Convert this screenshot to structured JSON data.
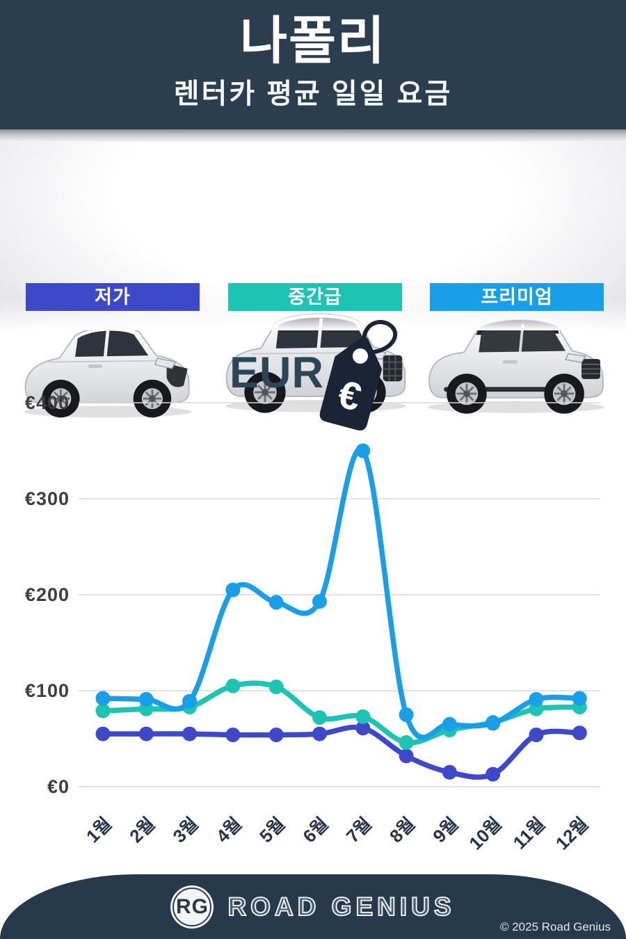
{
  "header": {
    "title": "나폴리",
    "subtitle": "렌터카 평균 일일 요금"
  },
  "categories": [
    {
      "label": "저가",
      "color": "#3e49c9"
    },
    {
      "label": "중간급",
      "color": "#1cc4b4"
    },
    {
      "label": "프리미엄",
      "color": "#189fe8"
    }
  ],
  "currency": {
    "label": "EUR",
    "symbol": "€"
  },
  "chart_data": {
    "type": "line",
    "title": "나폴리 렌터카 평균 일일 요금",
    "currency": "EUR",
    "x": [
      "1월",
      "2월",
      "3월",
      "4월",
      "5월",
      "6월",
      "7월",
      "8월",
      "9월",
      "10월",
      "11월",
      "12월"
    ],
    "series": [
      {
        "name": "저가",
        "color": "#3e49c9",
        "values": [
          55,
          55,
          55,
          54,
          54,
          55,
          61,
          32,
          15,
          13,
          54,
          56
        ]
      },
      {
        "name": "중간급",
        "color": "#1cc4b4",
        "values": [
          79,
          81,
          83,
          105,
          104,
          72,
          73,
          46,
          59,
          67,
          81,
          83
        ]
      },
      {
        "name": "프리미엄",
        "color": "#189fe8",
        "values": [
          92,
          91,
          89,
          205,
          192,
          193,
          350,
          75,
          65,
          66,
          91,
          92
        ]
      }
    ],
    "yticks": [
      {
        "value": 0,
        "label": "€0"
      },
      {
        "value": 100,
        "label": "€100"
      },
      {
        "value": 200,
        "label": "€200"
      },
      {
        "value": 300,
        "label": "€300"
      },
      {
        "value": 400,
        "label": "€400"
      }
    ],
    "ylim": [
      0,
      440
    ],
    "grid": true,
    "legend_position": "category-bars-above-chart"
  },
  "footer": {
    "logo_text": "RG",
    "brand": "ROAD GENIUS",
    "copyright": "© 2025 Road Genius"
  }
}
